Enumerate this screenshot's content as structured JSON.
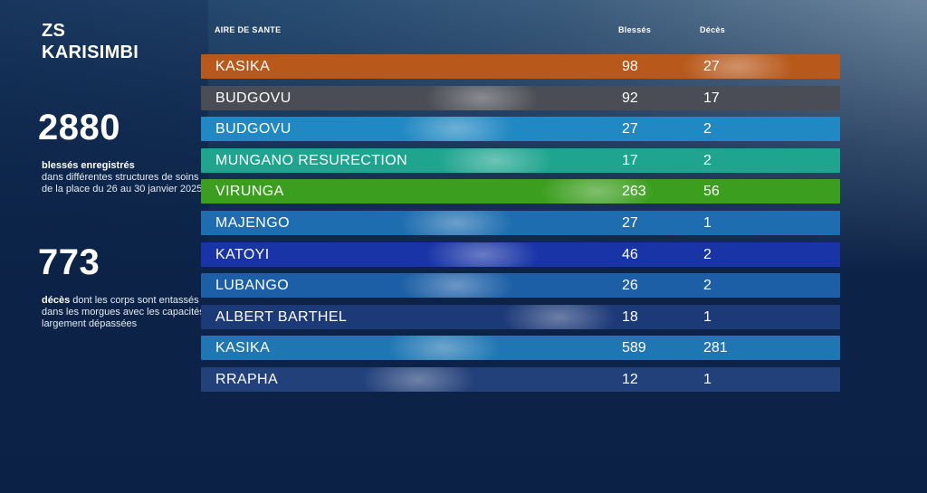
{
  "sidebar": {
    "title": "ZS\nKARISIMBI",
    "injured_total": "2880",
    "injured_desc_bold": "blessés enregistrés",
    "injured_desc_rest": "dans différentes structures de soins de la place du 26 au 30 janvier 2025",
    "deaths_total": "773",
    "deaths_desc_bold": "décès",
    "deaths_desc_rest": " dont les corps sont entassés dans les morgues avec les capacités largement dépassées"
  },
  "chart_data": {
    "type": "table",
    "columns": [
      "AIRE DE SANTE",
      "Blessés",
      "Décès"
    ],
    "rows": [
      {
        "name": "KASIKA",
        "blesses": 98,
        "deces": 27,
        "color": "#b8581a"
      },
      {
        "name": "BUDGOVU",
        "blesses": 92,
        "deces": 17,
        "color": "#4a4d55"
      },
      {
        "name": "BUDGOVU",
        "blesses": 27,
        "deces": 2,
        "color": "#2088c2"
      },
      {
        "name": "MUNGANO RESURECTION",
        "blesses": 17,
        "deces": 2,
        "color": "#1fa58f"
      },
      {
        "name": "VIRUNGA",
        "blesses": 263,
        "deces": 56,
        "color": "#3c9e1f"
      },
      {
        "name": "MAJENGO",
        "blesses": 27,
        "deces": 1,
        "color": "#1d6db0"
      },
      {
        "name": "KATOYI",
        "blesses": 46,
        "deces": 2,
        "color": "#1834a6"
      },
      {
        "name": "LUBANGO",
        "blesses": 26,
        "deces": 2,
        "color": "#1c5fa6"
      },
      {
        "name": "ALBERT BARTHEL",
        "blesses": 18,
        "deces": 1,
        "color": "#1d3a78"
      },
      {
        "name": "KASIKA",
        "blesses": 589,
        "deces": 281,
        "color": "#1f76b3"
      },
      {
        "name": "RRAPHA",
        "blesses": 12,
        "deces": 1,
        "color": "#22407a"
      }
    ]
  }
}
